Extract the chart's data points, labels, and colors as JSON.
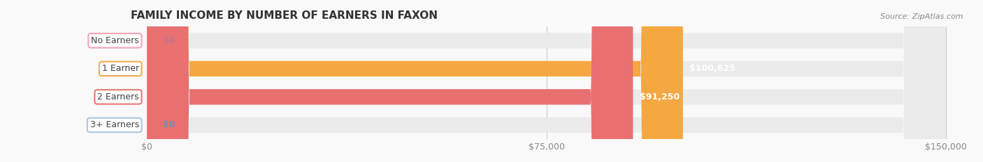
{
  "title": "FAMILY INCOME BY NUMBER OF EARNERS IN FAXON",
  "source": "Source: ZipAtlas.com",
  "categories": [
    "No Earners",
    "1 Earner",
    "2 Earners",
    "3+ Earners"
  ],
  "values": [
    0,
    100625,
    91250,
    0
  ],
  "bar_colors": [
    "#f5a0b5",
    "#f5a742",
    "#e87070",
    "#a8c4e0"
  ],
  "bar_bg_color": "#ebebeb",
  "label_colors": [
    "#c0728a",
    "#e08030",
    "#d05050",
    "#7090b0"
  ],
  "value_labels": [
    "$0",
    "$100,625",
    "$91,250",
    "$0"
  ],
  "xlim": [
    0,
    150000
  ],
  "xticks": [
    0,
    75000,
    150000
  ],
  "xtick_labels": [
    "$0",
    "$75,000",
    "$150,000"
  ],
  "title_fontsize": 11,
  "tick_fontsize": 9,
  "bar_height": 0.55,
  "background_color": "#f9f9f9",
  "label_bg_color": "#ffffff"
}
